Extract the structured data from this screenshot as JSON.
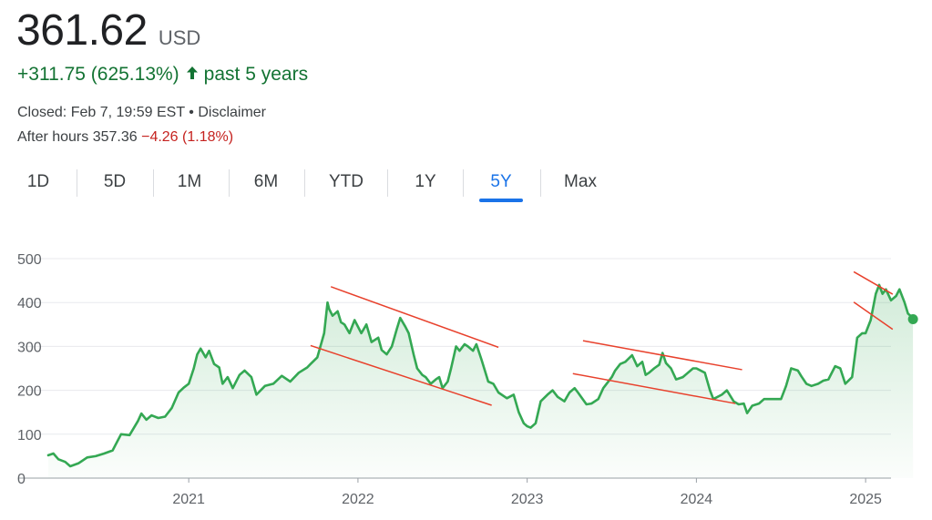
{
  "header": {
    "price": "361.62",
    "currency": "USD",
    "change": "+311.75 (625.13%)",
    "period": "past 5 years",
    "closed": "Closed: Feb 7, 19:59 EST",
    "separator": "•",
    "disclaimer": "Disclaimer",
    "after_hours_label": "After hours 357.36",
    "after_hours_change": "−4.26 (1.18%)"
  },
  "tabs": [
    {
      "label": "1D"
    },
    {
      "label": "5D"
    },
    {
      "label": "1M"
    },
    {
      "label": "6M"
    },
    {
      "label": "YTD"
    },
    {
      "label": "1Y"
    },
    {
      "label": "5Y",
      "active": true
    },
    {
      "label": "Max"
    }
  ],
  "colors": {
    "line": "#34a853",
    "positive": "#137333",
    "negative": "#c5221f",
    "trendline": "#e8412c",
    "active_tab": "#1a73e8"
  },
  "chart_data": {
    "type": "area",
    "x_unit": "year",
    "xlim": [
      2020.1,
      2025.15
    ],
    "ylim": [
      0,
      500
    ],
    "yticks": [
      0,
      100,
      200,
      300,
      400,
      500
    ],
    "xticks": [
      {
        "value": 2021,
        "label": "2021"
      },
      {
        "value": 2022,
        "label": "2022"
      },
      {
        "value": 2023,
        "label": "2023"
      },
      {
        "value": 2024,
        "label": "2024"
      },
      {
        "value": 2025,
        "label": "2025"
      }
    ],
    "grid": "horizontal",
    "series": [
      {
        "points": [
          [
            2020.17,
            52
          ],
          [
            2020.2,
            56
          ],
          [
            2020.23,
            43
          ],
          [
            2020.27,
            37
          ],
          [
            2020.3,
            27
          ],
          [
            2020.35,
            34
          ],
          [
            2020.4,
            47
          ],
          [
            2020.45,
            50
          ],
          [
            2020.5,
            56
          ],
          [
            2020.55,
            63
          ],
          [
            2020.6,
            100
          ],
          [
            2020.65,
            98
          ],
          [
            2020.7,
            130
          ],
          [
            2020.72,
            147
          ],
          [
            2020.75,
            133
          ],
          [
            2020.78,
            143
          ],
          [
            2020.82,
            137
          ],
          [
            2020.86,
            140
          ],
          [
            2020.9,
            160
          ],
          [
            2020.94,
            195
          ],
          [
            2020.97,
            206
          ],
          [
            2021.0,
            215
          ],
          [
            2021.03,
            250
          ],
          [
            2021.05,
            282
          ],
          [
            2021.07,
            295
          ],
          [
            2021.1,
            275
          ],
          [
            2021.12,
            290
          ],
          [
            2021.15,
            260
          ],
          [
            2021.18,
            252
          ],
          [
            2021.2,
            215
          ],
          [
            2021.23,
            230
          ],
          [
            2021.26,
            205
          ],
          [
            2021.3,
            235
          ],
          [
            2021.33,
            245
          ],
          [
            2021.37,
            230
          ],
          [
            2021.4,
            190
          ],
          [
            2021.45,
            210
          ],
          [
            2021.5,
            215
          ],
          [
            2021.55,
            233
          ],
          [
            2021.6,
            220
          ],
          [
            2021.65,
            240
          ],
          [
            2021.7,
            252
          ],
          [
            2021.72,
            260
          ],
          [
            2021.76,
            275
          ],
          [
            2021.8,
            330
          ],
          [
            2021.82,
            400
          ],
          [
            2021.83,
            385
          ],
          [
            2021.85,
            370
          ],
          [
            2021.88,
            380
          ],
          [
            2021.9,
            355
          ],
          [
            2021.92,
            350
          ],
          [
            2021.95,
            330
          ],
          [
            2021.98,
            360
          ],
          [
            2022.02,
            330
          ],
          [
            2022.05,
            350
          ],
          [
            2022.08,
            310
          ],
          [
            2022.12,
            320
          ],
          [
            2022.14,
            292
          ],
          [
            2022.17,
            282
          ],
          [
            2022.2,
            300
          ],
          [
            2022.23,
            340
          ],
          [
            2022.25,
            365
          ],
          [
            2022.28,
            345
          ],
          [
            2022.3,
            330
          ],
          [
            2022.33,
            280
          ],
          [
            2022.35,
            250
          ],
          [
            2022.38,
            235
          ],
          [
            2022.4,
            230
          ],
          [
            2022.43,
            215
          ],
          [
            2022.46,
            225
          ],
          [
            2022.48,
            230
          ],
          [
            2022.5,
            205
          ],
          [
            2022.53,
            220
          ],
          [
            2022.55,
            250
          ],
          [
            2022.58,
            300
          ],
          [
            2022.6,
            290
          ],
          [
            2022.63,
            305
          ],
          [
            2022.65,
            300
          ],
          [
            2022.68,
            290
          ],
          [
            2022.7,
            305
          ],
          [
            2022.73,
            270
          ],
          [
            2022.75,
            245
          ],
          [
            2022.77,
            220
          ],
          [
            2022.8,
            215
          ],
          [
            2022.83,
            195
          ],
          [
            2022.88,
            182
          ],
          [
            2022.92,
            190
          ],
          [
            2022.95,
            150
          ],
          [
            2022.98,
            125
          ],
          [
            2023.0,
            118
          ],
          [
            2023.02,
            115
          ],
          [
            2023.05,
            125
          ],
          [
            2023.08,
            175
          ],
          [
            2023.12,
            190
          ],
          [
            2023.15,
            200
          ],
          [
            2023.18,
            185
          ],
          [
            2023.22,
            175
          ],
          [
            2023.25,
            195
          ],
          [
            2023.28,
            205
          ],
          [
            2023.3,
            195
          ],
          [
            2023.35,
            168
          ],
          [
            2023.38,
            170
          ],
          [
            2023.42,
            180
          ],
          [
            2023.45,
            205
          ],
          [
            2023.5,
            230
          ],
          [
            2023.52,
            245
          ],
          [
            2023.55,
            260
          ],
          [
            2023.58,
            265
          ],
          [
            2023.62,
            280
          ],
          [
            2023.65,
            255
          ],
          [
            2023.68,
            265
          ],
          [
            2023.7,
            235
          ],
          [
            2023.72,
            240
          ],
          [
            2023.75,
            250
          ],
          [
            2023.78,
            258
          ],
          [
            2023.8,
            285
          ],
          [
            2023.82,
            262
          ],
          [
            2023.85,
            250
          ],
          [
            2023.88,
            225
          ],
          [
            2023.92,
            230
          ],
          [
            2023.95,
            240
          ],
          [
            2023.98,
            250
          ],
          [
            2024.0,
            250
          ],
          [
            2024.05,
            240
          ],
          [
            2024.08,
            200
          ],
          [
            2024.1,
            180
          ],
          [
            2024.15,
            190
          ],
          [
            2024.18,
            200
          ],
          [
            2024.22,
            175
          ],
          [
            2024.25,
            168
          ],
          [
            2024.28,
            170
          ],
          [
            2024.3,
            148
          ],
          [
            2024.33,
            165
          ],
          [
            2024.37,
            170
          ],
          [
            2024.4,
            180
          ],
          [
            2024.45,
            180
          ],
          [
            2024.5,
            180
          ],
          [
            2024.53,
            210
          ],
          [
            2024.56,
            250
          ],
          [
            2024.6,
            245
          ],
          [
            2024.62,
            232
          ],
          [
            2024.65,
            215
          ],
          [
            2024.68,
            210
          ],
          [
            2024.72,
            215
          ],
          [
            2024.75,
            222
          ],
          [
            2024.78,
            225
          ],
          [
            2024.82,
            255
          ],
          [
            2024.85,
            250
          ],
          [
            2024.88,
            215
          ],
          [
            2024.92,
            230
          ],
          [
            2024.95,
            320
          ],
          [
            2024.98,
            330
          ],
          [
            2025.0,
            330
          ],
          [
            2025.03,
            360
          ],
          [
            2025.06,
            420
          ],
          [
            2025.08,
            440
          ],
          [
            2025.1,
            420
          ],
          [
            2025.12,
            430
          ],
          [
            2025.15,
            405
          ],
          [
            2025.18,
            415
          ],
          [
            2025.2,
            430
          ],
          [
            2025.23,
            400
          ],
          [
            2025.25,
            375
          ],
          [
            2025.28,
            365
          ]
        ]
      }
    ],
    "current_point": [
      2025.28,
      362
    ],
    "trendlines": [
      {
        "from": [
          2021.84,
          436
        ],
        "to": [
          2022.83,
          298
        ]
      },
      {
        "from": [
          2021.72,
          302
        ],
        "to": [
          2022.79,
          166
        ]
      },
      {
        "from": [
          2023.33,
          313
        ],
        "to": [
          2024.27,
          247
        ]
      },
      {
        "from": [
          2023.27,
          238
        ],
        "to": [
          2024.23,
          170
        ]
      },
      {
        "from": [
          2024.93,
          470
        ],
        "to": [
          2025.16,
          419
        ]
      },
      {
        "from": [
          2024.93,
          401
        ],
        "to": [
          2025.16,
          339
        ]
      }
    ]
  }
}
